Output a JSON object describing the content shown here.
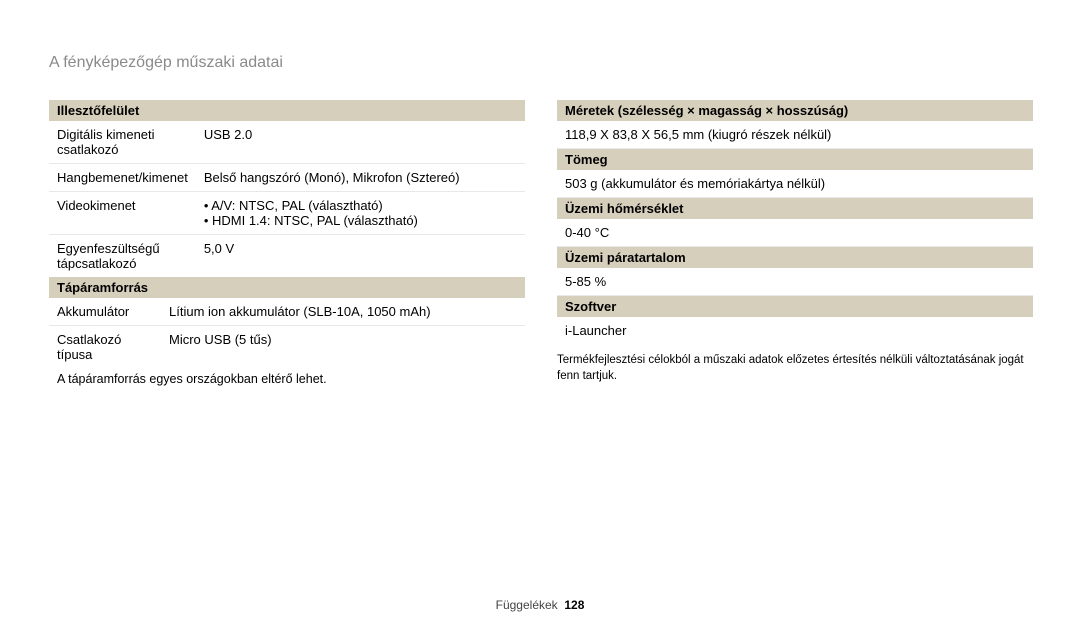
{
  "title": "A fényképezőgép műszaki adatai",
  "left": {
    "section1": {
      "header": "Illesztőfelület",
      "rows": [
        {
          "label": "Digitális kimeneti csatlakozó",
          "value": "USB 2.0"
        },
        {
          "label": "Hangbemenet/kimenet",
          "value": "Belső hangszóró (Monó), Mikrofon (Sztereó)"
        },
        {
          "label": "Videokimenet",
          "bullets": [
            "A/V: NTSC, PAL (választható)",
            "HDMI 1.4: NTSC, PAL (választható)"
          ]
        },
        {
          "label": "Egyenfeszültségű tápcsatlakozó",
          "value": "5,0 V"
        }
      ]
    },
    "section2": {
      "header": "Tápáramforrás",
      "rows": [
        {
          "label": "Akkumulátor",
          "value": "Lítium ion akkumulátor (SLB-10A, 1050 mAh)"
        },
        {
          "label": "Csatlakozó típusa",
          "value": "Micro USB (5 tűs)"
        }
      ],
      "footnote": "A tápáramforrás egyes országokban eltérő lehet."
    }
  },
  "right": {
    "items": [
      {
        "header": "Méretek (szélesség × magasság × hosszúság)",
        "value": "118,9 X 83,8 X 56,5 mm (kiugró részek nélkül)"
      },
      {
        "header": "Tömeg",
        "value": "503 g (akkumulátor és memóriakártya nélkül)"
      },
      {
        "header": "Üzemi hőmérséklet",
        "value": "0-40 °C"
      },
      {
        "header": "Üzemi páratartalom",
        "value": "5-85 %"
      },
      {
        "header": "Szoftver",
        "value": "i-Launcher"
      }
    ],
    "disclaimer": "Termékfejlesztési célokból a műszaki adatok előzetes értesítés nélküli változtatásának jogát fenn tartjuk."
  },
  "footer": {
    "label": "Függelékek",
    "page": "128"
  }
}
